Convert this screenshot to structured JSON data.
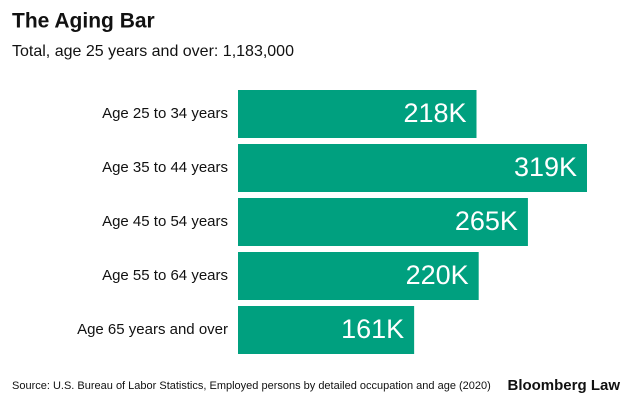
{
  "chart_data": {
    "type": "bar",
    "orientation": "horizontal",
    "title": "The Aging Bar",
    "subtitle": "Total, age 25 years and over: 1,183,000",
    "categories": [
      "Age 25 to 34 years",
      "Age 35 to 44 years",
      "Age 45 to 54 years",
      "Age 55 to 64 years",
      "Age 65 years and over"
    ],
    "values": [
      218000,
      319000,
      265000,
      220000,
      161000
    ],
    "value_labels": [
      "218K",
      "319K",
      "265K",
      "220K",
      "161K"
    ],
    "color": "#00a07f",
    "source": "Source: U.S. Bureau of Labor Statistics, Employed persons by detailed occupation and age (2020)",
    "brand": "Bloomberg Law"
  }
}
